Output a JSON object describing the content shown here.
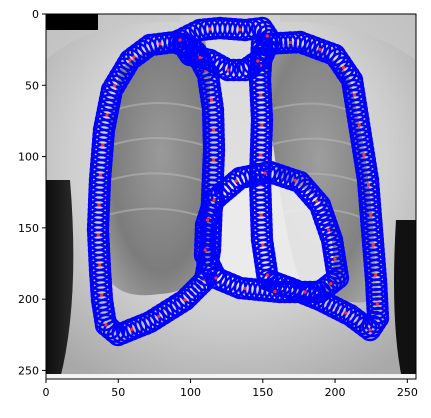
{
  "plot": {
    "x_ticks": [
      "0",
      "50",
      "100",
      "150",
      "200",
      "250"
    ],
    "y_ticks": [
      "0",
      "50",
      "100",
      "150",
      "200",
      "250"
    ],
    "x_range": [
      0,
      256
    ],
    "y_range": [
      0,
      256
    ],
    "image": "grayscale chest x-ray",
    "overlay": {
      "ring_color": "#0000ff",
      "marker_color": "#ff3030",
      "structures": [
        "right lung outline",
        "left lung outline",
        "heart outline",
        "mediastinum outline"
      ]
    }
  }
}
